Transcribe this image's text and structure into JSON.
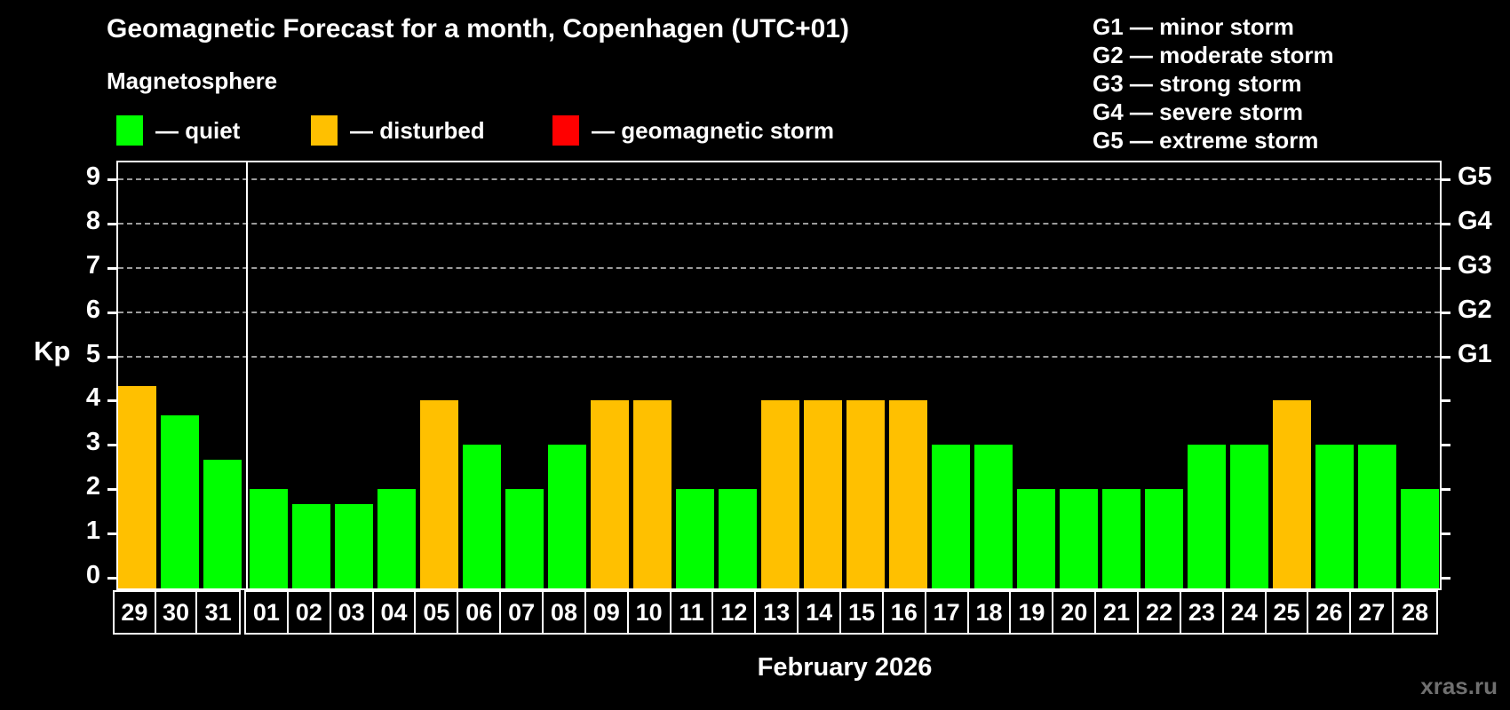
{
  "title": "Geomagnetic Forecast for a month, Copenhagen (UTC+01)",
  "subtitle": "Magnetosphere",
  "legend": [
    {
      "status": "quiet",
      "label": "— quiet"
    },
    {
      "status": "disturbed",
      "label": "— disturbed"
    },
    {
      "status": "storm",
      "label": "— geomagnetic storm"
    }
  ],
  "g_legend": [
    "G1 — minor storm",
    "G2 — moderate storm",
    "G3 — strong storm",
    "G4 — severe storm",
    "G5 — extreme storm"
  ],
  "colors": {
    "quiet": "#00ff00",
    "disturbed": "#ffc000",
    "storm": "#ff0000",
    "grid": "#9c9c9c",
    "axis": "#ffffff",
    "background": "#000000",
    "watermark": "#6f6f6f"
  },
  "chart_data": {
    "type": "bar",
    "title": "Geomagnetic Forecast for a month, Copenhagen (UTC+01)",
    "ylabel": "Kp",
    "xlabel": "February 2026",
    "ylim": [
      0,
      9
    ],
    "y_ticks": [
      0,
      1,
      2,
      3,
      4,
      5,
      6,
      7,
      8,
      9
    ],
    "grid_levels": [
      5,
      6,
      7,
      8,
      9
    ],
    "right_axis_labels": [
      {
        "kp": 5,
        "label": "G1"
      },
      {
        "kp": 6,
        "label": "G2"
      },
      {
        "kp": 7,
        "label": "G3"
      },
      {
        "kp": 8,
        "label": "G4"
      },
      {
        "kp": 9,
        "label": "G5"
      }
    ],
    "month_split_index": 3,
    "categories": [
      "29",
      "30",
      "31",
      "01",
      "02",
      "03",
      "04",
      "05",
      "06",
      "07",
      "08",
      "09",
      "10",
      "11",
      "12",
      "13",
      "14",
      "15",
      "16",
      "17",
      "18",
      "19",
      "20",
      "21",
      "22",
      "23",
      "24",
      "25",
      "26",
      "27",
      "28"
    ],
    "values": [
      4.33,
      3.67,
      2.67,
      2,
      1.67,
      1.67,
      2,
      4,
      3,
      2,
      3,
      4,
      4,
      2,
      2,
      4,
      4,
      4,
      4,
      3,
      3,
      2,
      2,
      2,
      2,
      3,
      3,
      4,
      3,
      3,
      2
    ],
    "statuses": [
      "disturbed",
      "quiet",
      "quiet",
      "quiet",
      "quiet",
      "quiet",
      "quiet",
      "disturbed",
      "quiet",
      "quiet",
      "quiet",
      "disturbed",
      "disturbed",
      "quiet",
      "quiet",
      "disturbed",
      "disturbed",
      "disturbed",
      "disturbed",
      "quiet",
      "quiet",
      "quiet",
      "quiet",
      "quiet",
      "quiet",
      "quiet",
      "quiet",
      "disturbed",
      "quiet",
      "quiet",
      "quiet"
    ]
  },
  "watermark": "xras.ru"
}
